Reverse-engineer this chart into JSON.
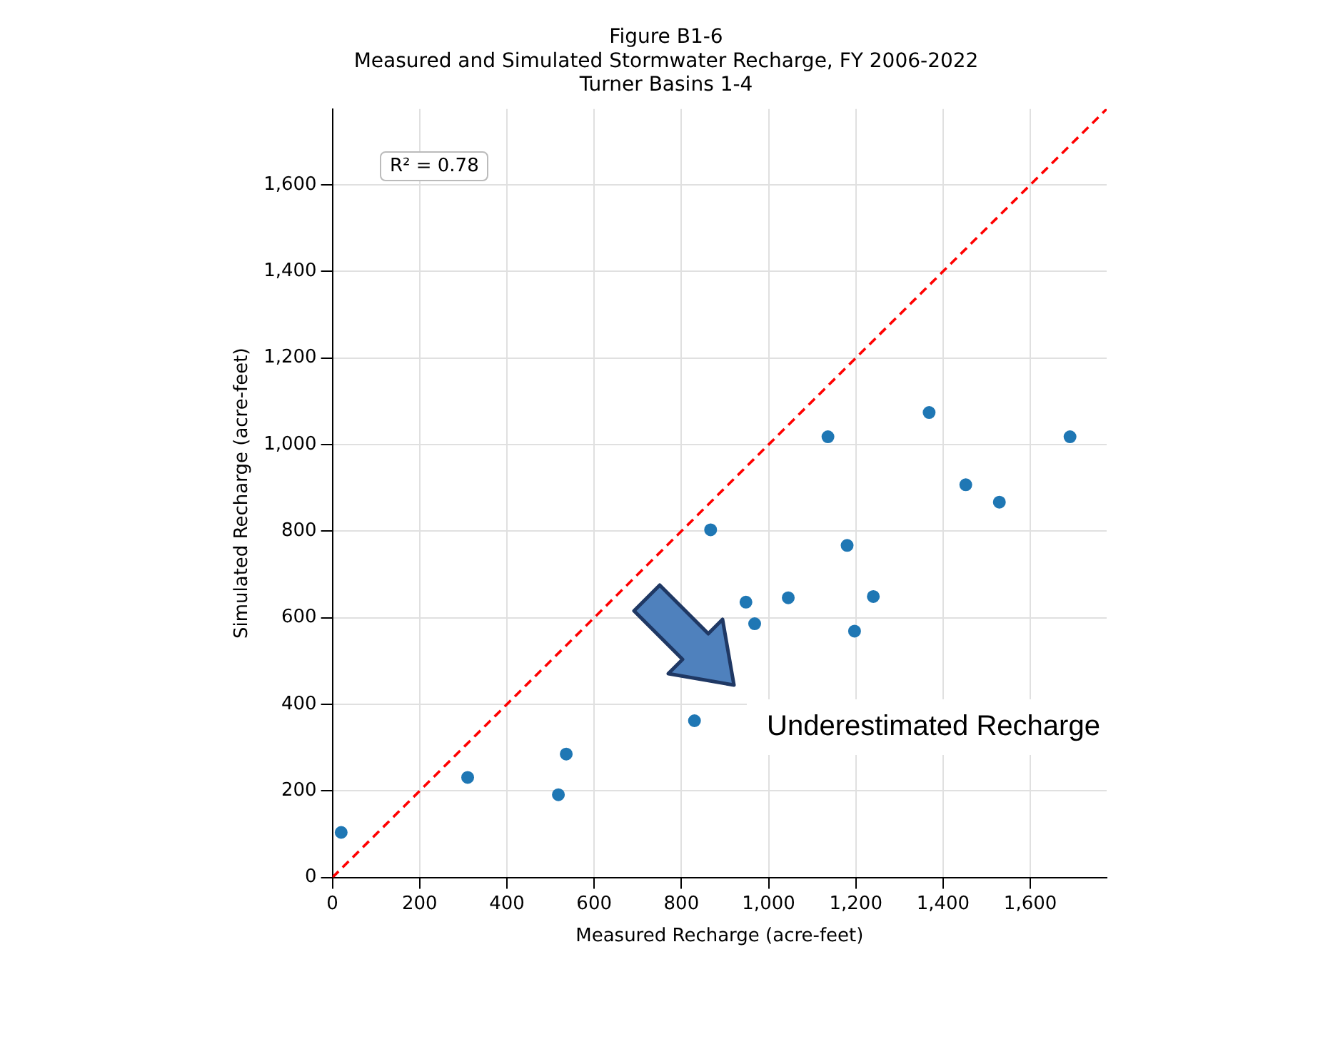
{
  "chart_data": {
    "type": "scatter",
    "title": "Figure B1-6\nMeasured and Simulated Stormwater Recharge, FY 2006-2022",
    "subtitle": "Turner Basins 1-4",
    "xlabel": "Measured Recharge (acre-feet)",
    "ylabel": "Simulated Recharge (acre-feet)",
    "xlim": [
      0,
      1775
    ],
    "ylim": [
      0,
      1775
    ],
    "xticks": [
      0,
      200,
      400,
      600,
      800,
      {
        "value": 1000,
        "label": "1,000"
      },
      {
        "value": 1200,
        "label": "1,200"
      },
      {
        "value": 1400,
        "label": "1,400"
      },
      {
        "value": 1600,
        "label": "1,600"
      }
    ],
    "yticks": [
      0,
      200,
      400,
      600,
      800,
      {
        "value": 1000,
        "label": "1,000"
      },
      {
        "value": 1200,
        "label": "1,200"
      },
      {
        "value": 1400,
        "label": "1,400"
      },
      {
        "value": 1600,
        "label": "1,600"
      }
    ],
    "grid": true,
    "series": [
      {
        "marker": "circle",
        "color": "#1f77b4",
        "x": [
          20,
          310,
          518,
          536,
          830,
          867,
          948,
          968,
          1045,
          1136,
          1180,
          1197,
          1240,
          1368,
          1452,
          1529,
          1691
        ],
        "values": [
          104,
          231,
          191,
          285,
          362,
          803,
          636,
          586,
          646,
          1018,
          767,
          569,
          649,
          1074,
          907,
          867,
          1018
        ]
      },
      {
        "type": "line",
        "marker": "none",
        "color": "#ff0000",
        "line_style": "dashed",
        "x": [
          0,
          1775
        ],
        "values": [
          0,
          1775
        ]
      }
    ],
    "annotations": [
      "R² = 0.78",
      "Underestimated Recharge"
    ]
  }
}
